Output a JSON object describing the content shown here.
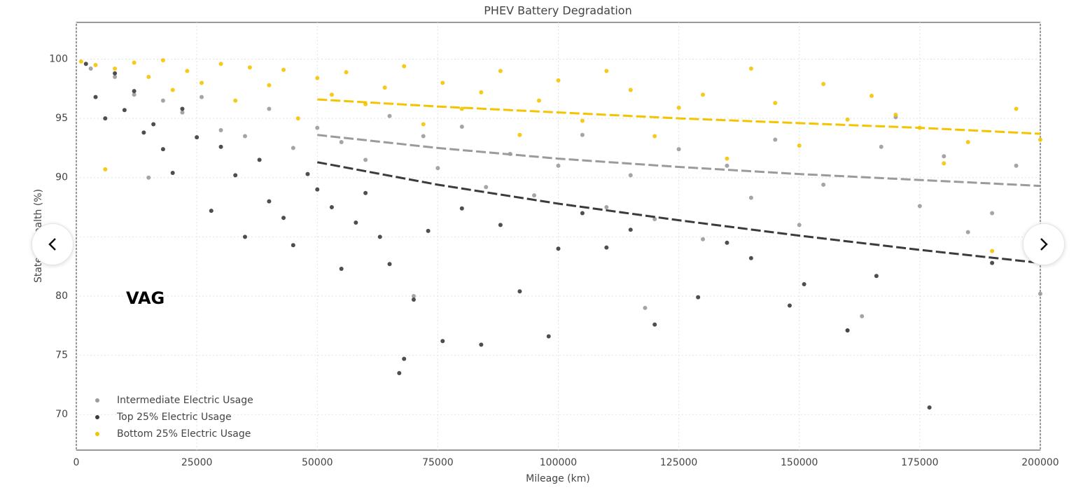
{
  "chart_data": {
    "type": "scatter",
    "title": "PHEV Battery Degradation",
    "x_label": "Mileage (km)",
    "y_label": "State of Health (%)",
    "xlim": [
      0,
      200000
    ],
    "xticks": [
      0,
      25000,
      50000,
      75000,
      100000,
      125000,
      150000,
      175000,
      200000
    ],
    "ylim": [
      67,
      103.1
    ],
    "yticks": [
      70,
      75,
      80,
      85,
      90,
      95,
      100
    ],
    "grid": true,
    "legend": "lower left",
    "trend_x": [
      50000,
      75000,
      100000,
      125000,
      150000,
      175000,
      200000
    ],
    "series": [
      {
        "name": "Intermediate Electric Usage",
        "color": "#9b9b9b",
        "x": [
          3000,
          8000,
          12000,
          15000,
          18000,
          22000,
          26000,
          30000,
          35000,
          40000,
          45000,
          50000,
          55000,
          60000,
          65000,
          70000,
          72000,
          75000,
          80000,
          85000,
          90000,
          95000,
          100000,
          105000,
          110000,
          115000,
          118000,
          120000,
          125000,
          130000,
          135000,
          140000,
          145000,
          150000,
          155000,
          160000,
          163000,
          167000,
          170000,
          175000,
          180000,
          185000,
          190000,
          195000,
          200000
        ],
        "values": [
          99.2,
          98.5,
          97.0,
          90.0,
          96.5,
          95.5,
          96.8,
          94.0,
          93.5,
          95.8,
          92.5,
          94.2,
          93.0,
          91.5,
          95.2,
          80.0,
          93.5,
          90.8,
          94.3,
          89.2,
          92.0,
          88.5,
          91.0,
          93.6,
          87.5,
          90.2,
          79.0,
          86.5,
          92.4,
          84.8,
          91.0,
          88.3,
          93.2,
          86.0,
          89.4,
          77.1,
          78.3,
          92.6,
          95.1,
          87.6,
          91.8,
          85.4,
          87.0,
          91.0,
          80.2
        ],
        "trend": [
          93.6,
          92.5,
          91.6,
          90.9,
          90.3,
          89.8,
          89.3
        ]
      },
      {
        "name": "Top 25% Electric Usage",
        "color": "#3b3b3b",
        "x": [
          2000,
          4000,
          6000,
          8000,
          10000,
          12000,
          14000,
          16000,
          18000,
          20000,
          22000,
          25000,
          28000,
          30000,
          33000,
          35000,
          38000,
          40000,
          43000,
          45000,
          48000,
          50000,
          53000,
          55000,
          58000,
          60000,
          63000,
          65000,
          67000,
          68000,
          70000,
          73000,
          76000,
          80000,
          84000,
          88000,
          92000,
          98000,
          100000,
          105000,
          110000,
          115000,
          120000,
          129000,
          135000,
          140000,
          148000,
          151000,
          160000,
          166000,
          177000,
          190000,
          200000
        ],
        "values": [
          99.6,
          96.8,
          95.0,
          98.8,
          95.7,
          97.3,
          93.8,
          94.5,
          92.4,
          90.4,
          95.8,
          93.4,
          87.2,
          92.6,
          90.2,
          85.0,
          91.5,
          88.0,
          86.6,
          84.3,
          90.3,
          89.0,
          87.5,
          82.3,
          86.2,
          88.7,
          85.0,
          82.7,
          73.5,
          74.7,
          79.7,
          85.5,
          76.2,
          87.4,
          75.9,
          86.0,
          80.4,
          76.6,
          84.0,
          87.0,
          84.1,
          85.6,
          77.6,
          79.9,
          84.5,
          83.2,
          79.2,
          81.0,
          77.1,
          81.7,
          70.6,
          82.8,
          83.0
        ],
        "trend": [
          91.3,
          89.4,
          87.8,
          86.4,
          85.1,
          83.9,
          82.8
        ]
      },
      {
        "name": "Bottom 25% Electric Usage",
        "color": "#f5c400",
        "x": [
          1000,
          4000,
          6000,
          8000,
          12000,
          15000,
          18000,
          20000,
          23000,
          26000,
          30000,
          33000,
          36000,
          40000,
          43000,
          46000,
          50000,
          53000,
          56000,
          60000,
          64000,
          68000,
          72000,
          76000,
          80000,
          84000,
          88000,
          92000,
          96000,
          100000,
          105000,
          110000,
          115000,
          120000,
          125000,
          130000,
          135000,
          140000,
          145000,
          150000,
          155000,
          160000,
          165000,
          170000,
          175000,
          180000,
          185000,
          190000,
          195000,
          200000
        ],
        "values": [
          99.8,
          99.5,
          90.7,
          99.2,
          99.7,
          98.5,
          99.9,
          97.4,
          99.0,
          98.0,
          99.6,
          96.5,
          99.3,
          97.8,
          99.1,
          95.0,
          98.4,
          97.0,
          98.9,
          96.2,
          97.6,
          99.4,
          94.5,
          98.0,
          95.8,
          97.2,
          99.0,
          93.6,
          96.5,
          98.2,
          94.8,
          99.0,
          97.4,
          93.5,
          95.9,
          97.0,
          91.6,
          99.2,
          96.3,
          92.7,
          97.9,
          94.9,
          96.9,
          95.3,
          94.2,
          91.2,
          93.0,
          83.8,
          95.8,
          93.2
        ],
        "trend": [
          96.6,
          96.0,
          95.5,
          95.0,
          94.6,
          94.2,
          93.7
        ]
      }
    ]
  },
  "overlay": {
    "brand": "VAG"
  }
}
